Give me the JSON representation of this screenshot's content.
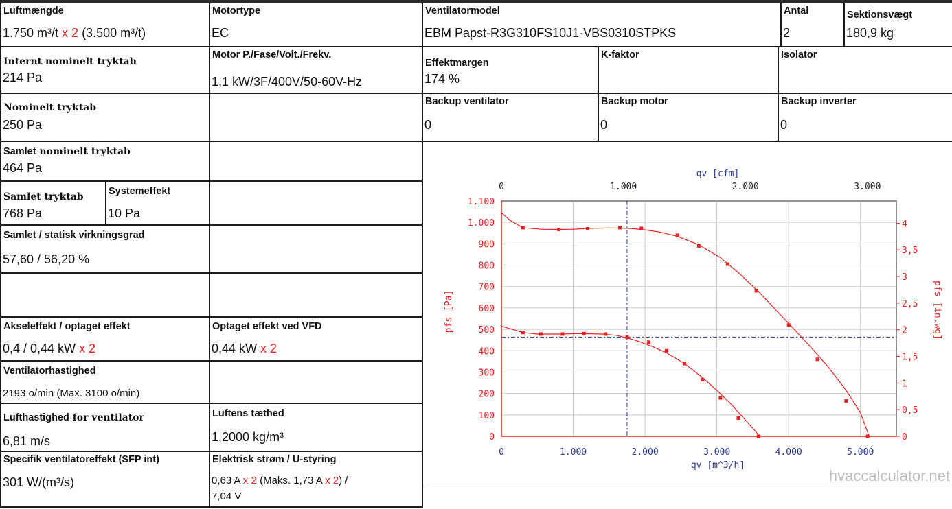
{
  "rows": {
    "luftmaengde": {
      "label": "Luftmængde",
      "value_main": "1.750 m³/t ",
      "mult": "x 2",
      "value_tail": " (3.500 m³/t)"
    },
    "motortype": {
      "label": "Motortype",
      "value": "EC"
    },
    "ventilatormodel": {
      "label": "Ventilatormodel",
      "value": "EBM Papst-R3G310FS10J1-VBS0310STPKS"
    },
    "antal": {
      "label": "Antal",
      "value": "2"
    },
    "sektionsvaegt": {
      "label": "Sektionsvægt",
      "value": "180,9 kg"
    },
    "internt": {
      "label": "Internt nominelt tryktab",
      "value": "214 Pa"
    },
    "motor_p": {
      "label": "Motor P./Fase/Volt./Frekv.",
      "value": "1,1 kW/3F/400V/50-60V-Hz"
    },
    "effektmargen": {
      "label": "Effektmargen",
      "value": "174 %"
    },
    "kfaktor": {
      "label": "K-faktor",
      "value": ""
    },
    "isolator": {
      "label": "Isolator",
      "value": ""
    },
    "nominelt": {
      "label": "Nominelt tryktab",
      "value": "250 Pa"
    },
    "backup_vent": {
      "label": "Backup ventilator",
      "value": "0"
    },
    "backup_motor": {
      "label": "Backup motor",
      "value": "0"
    },
    "backup_inverter": {
      "label": "Backup inverter",
      "value": "0"
    },
    "samlet_nominelt": {
      "label_bold": "Samlet",
      "label_serif": " nominelt tryktab",
      "value": "464 Pa"
    },
    "samlet_tryktab": {
      "label": "Samlet tryktab",
      "value": "768 Pa"
    },
    "systemeffekt": {
      "label": "Systemeffekt",
      "value": "10 Pa"
    },
    "virkningsgrad": {
      "label": "Samlet / statisk virkningsgrad",
      "value": "57,60 / 56,20 %"
    },
    "akseleffekt": {
      "label": "Akseleffekt / optaget effekt",
      "value_main": "0,4 / 0,44 kW ",
      "mult": "x 2"
    },
    "vfd": {
      "label": "Optaget effekt ved VFD",
      "value_main": "0,44 kW ",
      "mult": "x 2"
    },
    "hastighed": {
      "label": "Ventilatorhastighed",
      "value": "2193 o/min (Max. 3100 o/min)"
    },
    "lufthastighed": {
      "label_bold": "Lufthastighed",
      "label_serif": " for ventilator",
      "value": "6,81 m/s"
    },
    "taethed": {
      "label": "Luftens tæthed",
      "value": "1,2000 kg/m³"
    },
    "sfp": {
      "label": "Specifik ventilatoreffekt (SFP int)",
      "value": "301 W/(m³/s)"
    },
    "strom": {
      "label": "Elektrisk strøm / U-styring",
      "v1": "0,63 A ",
      "m1": "x 2",
      "v2": " (Maks. 1,73 A ",
      "m2": "x 2",
      "v3": ") /",
      "v4": "7,04 V"
    }
  },
  "chart_data": {
    "type": "line",
    "xlabel": "qv [m^3/h]",
    "x2label": "qv [cfm]",
    "ylabel": "pfs [Pa]",
    "y2label": "pfs [in.wg]",
    "xlim": [
      0,
      5500
    ],
    "ylim": [
      0,
      1100
    ],
    "x_ticks": [
      0,
      1000,
      2000,
      3000,
      4000,
      5000
    ],
    "x_tick_labels": [
      "0",
      "1.000",
      "2.000",
      "3.000",
      "4.000",
      "5.000"
    ],
    "x2_ticks": [
      0,
      1000,
      2000,
      3000
    ],
    "x2_tick_labels": [
      "0",
      "1.000",
      "2.000",
      "3.000"
    ],
    "y_ticks": [
      0,
      100,
      200,
      300,
      400,
      500,
      600,
      700,
      800,
      900,
      1000,
      1100
    ],
    "y_tick_labels": [
      "0",
      "100",
      "200",
      "300",
      "400",
      "500",
      "600",
      "700",
      "800",
      "900",
      "1.000",
      "1.100"
    ],
    "y2_ticks": [
      0,
      0.5,
      1,
      1.5,
      2,
      2.5,
      3,
      3.5,
      4
    ],
    "y2_tick_labels": [
      "0",
      "0,5",
      "1",
      "1,5",
      "2",
      "2,5",
      "3",
      "3,5",
      "4"
    ],
    "grid": true,
    "series": [
      {
        "x": [
          0,
          120,
          300,
          550,
          800,
          1000,
          1250,
          1500,
          1700,
          1850,
          2000,
          2200,
          2450,
          2750,
          3050,
          3300,
          3600,
          3850,
          4050,
          4300,
          4550,
          4800,
          5000,
          5120
        ],
        "y": [
          1045,
          1010,
          975,
          968,
          967,
          968,
          972,
          974,
          973,
          970,
          965,
          955,
          935,
          895,
          835,
          765,
          670,
          580,
          510,
          420,
          325,
          215,
          110,
          0
        ],
        "markers_x": [
          300,
          800,
          1200,
          1650,
          1950,
          2450,
          2750,
          3150,
          3550,
          4000,
          4400,
          4800,
          5100
        ],
        "markers_y": [
          975,
          967,
          970,
          975,
          972,
          940,
          890,
          805,
          680,
          520,
          360,
          165,
          0
        ]
      },
      {
        "x": [
          0,
          150,
          300,
          500,
          800,
          1100,
          1400,
          1600,
          1750,
          1900,
          2100,
          2300,
          2550,
          2800,
          3000,
          3200,
          3400,
          3600
        ],
        "y": [
          515,
          500,
          485,
          478,
          478,
          480,
          478,
          472,
          460,
          445,
          420,
          390,
          340,
          275,
          215,
          150,
          75,
          0
        ],
        "markers_x": [
          300,
          550,
          850,
          1150,
          1450,
          1750,
          2050,
          2300,
          2550,
          2800,
          3050,
          3300,
          3580
        ],
        "markers_y": [
          485,
          478,
          478,
          480,
          478,
          463,
          440,
          400,
          340,
          265,
          180,
          85,
          0
        ]
      }
    ],
    "operating_point": {
      "x": 1750,
      "y": 464
    },
    "watermark": "hvaccalculator.net"
  }
}
